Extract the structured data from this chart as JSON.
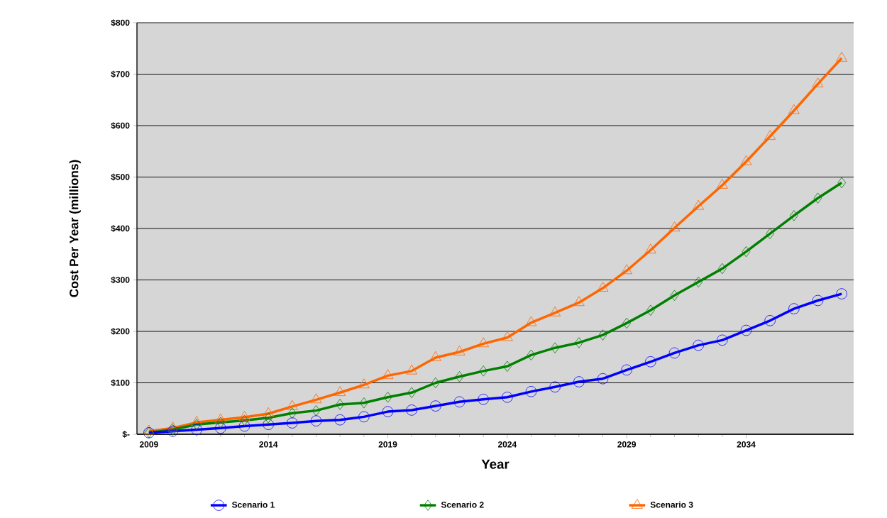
{
  "chart_data": {
    "type": "line",
    "xlabel": "Year",
    "ylabel": "Cost Per Year (millions)",
    "x": [
      2009,
      2010,
      2011,
      2012,
      2013,
      2014,
      2015,
      2016,
      2017,
      2018,
      2019,
      2020,
      2021,
      2022,
      2023,
      2024,
      2025,
      2026,
      2027,
      2028,
      2029,
      2030,
      2031,
      2032,
      2033,
      2034,
      2035,
      2036,
      2037,
      2038
    ],
    "series": [
      {
        "name": "Scenario 1",
        "color": "#0000ff",
        "marker": "circle",
        "values": [
          3,
          6,
          9,
          12,
          16,
          19,
          22,
          26,
          28,
          34,
          44,
          47,
          55,
          63,
          68,
          72,
          83,
          92,
          102,
          108,
          125,
          141,
          158,
          173,
          183,
          202,
          221,
          244,
          260,
          273
        ]
      },
      {
        "name": "Scenario 2",
        "color": "#008000",
        "marker": "diamond",
        "values": [
          3,
          9,
          19,
          23,
          27,
          32,
          41,
          46,
          58,
          61,
          72,
          81,
          100,
          112,
          123,
          132,
          154,
          168,
          178,
          193,
          216,
          241,
          270,
          296,
          322,
          355,
          390,
          425,
          459,
          489
        ]
      },
      {
        "name": "Scenario 3",
        "color": "#ff6600",
        "marker": "triangle",
        "values": [
          6,
          12,
          23,
          28,
          33,
          40,
          54,
          67,
          81,
          96,
          114,
          123,
          149,
          160,
          176,
          188,
          217,
          236,
          256,
          284,
          318,
          358,
          401,
          443,
          484,
          530,
          579,
          629,
          681,
          731
        ]
      }
    ],
    "xlim": [
      2008.5,
      2038.5
    ],
    "xticks": [
      2009,
      2014,
      2019,
      2024,
      2029,
      2034
    ],
    "ylim": [
      0,
      800
    ],
    "yticks": [
      {
        "value": 0,
        "label": "$-"
      },
      {
        "value": 100,
        "label": "$100"
      },
      {
        "value": 200,
        "label": "$200"
      },
      {
        "value": 300,
        "label": "$300"
      },
      {
        "value": 400,
        "label": "$400"
      },
      {
        "value": 500,
        "label": "$500"
      },
      {
        "value": 600,
        "label": "$600"
      },
      {
        "value": 700,
        "label": "$700"
      },
      {
        "value": 800,
        "label": "$800"
      }
    ],
    "grid": "y",
    "legend": "bottom",
    "line_style": "solid"
  }
}
